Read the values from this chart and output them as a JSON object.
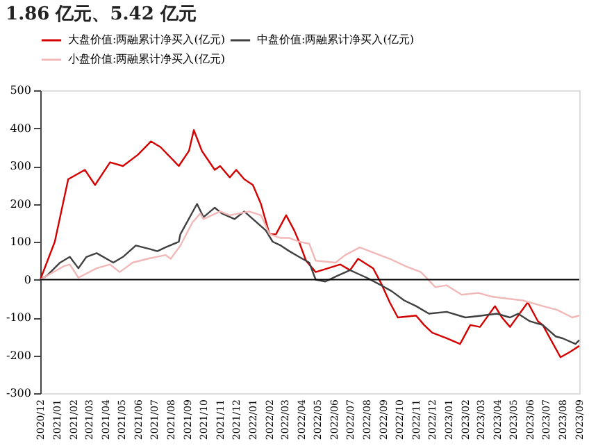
{
  "chart_data": {
    "type": "line",
    "title": "1.86 亿元、5.42 亿元",
    "xlim": [
      "2020-12",
      "2023-09"
    ],
    "xticks": [
      {
        "value": "2020-12",
        "label": "2020/12"
      },
      {
        "value": "2021-01",
        "label": "2021/01"
      },
      {
        "value": "2021-02",
        "label": "2021/02"
      },
      {
        "value": "2021-03",
        "label": "2021/03"
      },
      {
        "value": "2021-04",
        "label": "2021/04"
      },
      {
        "value": "2021-05",
        "label": "2021/05"
      },
      {
        "value": "2021-06",
        "label": "2021/06"
      },
      {
        "value": "2021-07",
        "label": "2021/07"
      },
      {
        "value": "2021-08",
        "label": "2021/08"
      },
      {
        "value": "2021-09",
        "label": "2021/09"
      },
      {
        "value": "2021-10",
        "label": "2021/10"
      },
      {
        "value": "2021-11",
        "label": "2021/11"
      },
      {
        "value": "2021-12",
        "label": "2021/12"
      },
      {
        "value": "2022-01",
        "label": "2022/01"
      },
      {
        "value": "2022-02",
        "label": "2022/02"
      },
      {
        "value": "2022-03",
        "label": "2022/03"
      },
      {
        "value": "2022-04",
        "label": "2022/04"
      },
      {
        "value": "2022-05",
        "label": "2022/05"
      },
      {
        "value": "2022-06",
        "label": "2022/06"
      },
      {
        "value": "2022-07",
        "label": "2022/07"
      },
      {
        "value": "2022-08",
        "label": "2022/08"
      },
      {
        "value": "2022-09",
        "label": "2022/09"
      },
      {
        "value": "2022-10",
        "label": "2022/10"
      },
      {
        "value": "2022-11",
        "label": "2022/11"
      },
      {
        "value": "2022-12",
        "label": "2022/12"
      },
      {
        "value": "2023-01",
        "label": "2023/01"
      },
      {
        "value": "2023-02",
        "label": "2023/02"
      },
      {
        "value": "2023-03",
        "label": "2023/03"
      },
      {
        "value": "2023-04",
        "label": "2023/04"
      },
      {
        "value": "2023-05",
        "label": "2023/05"
      },
      {
        "value": "2023-06",
        "label": "2023/06"
      },
      {
        "value": "2023-07",
        "label": "2023/07"
      },
      {
        "value": "2023-08",
        "label": "2023/08"
      },
      {
        "value": "2023-09",
        "label": "2023/09"
      }
    ],
    "ylim": [
      -300,
      500
    ],
    "yticks": [
      -300,
      -200,
      -100,
      0,
      100,
      200,
      300,
      400,
      500
    ],
    "grid": false,
    "legend": "top",
    "marker": "none",
    "line_style": "solid",
    "ref_lines": [
      {
        "axis": "y",
        "value": 0,
        "color": "#000000"
      }
    ],
    "series": [
      {
        "name": "大盘价值:两融累计净买入(亿元)",
        "color": "#d40000",
        "x": [
          "2020-12-01",
          "2020-12-28",
          "2021-01-22",
          "2021-02-22",
          "2021-03-13",
          "2021-04-10",
          "2021-05-04",
          "2021-06-01",
          "2021-06-25",
          "2021-07-13",
          "2021-08-16",
          "2021-09-04",
          "2021-09-13",
          "2021-09-28",
          "2021-10-22",
          "2021-11-01",
          "2021-11-19",
          "2021-12-01",
          "2021-12-16",
          "2022-01-01",
          "2022-01-16",
          "2022-02-01",
          "2022-02-13",
          "2022-03-04",
          "2022-03-19",
          "2022-03-28",
          "2022-04-10",
          "2022-04-28",
          "2022-06-13",
          "2022-07-01",
          "2022-07-16",
          "2022-08-13",
          "2022-08-28",
          "2022-09-13",
          "2022-09-28",
          "2022-11-01",
          "2022-11-16",
          "2022-12-01",
          "2022-12-28",
          "2023-01-22",
          "2023-02-10",
          "2023-02-28",
          "2023-03-28",
          "2023-04-10",
          "2023-04-25",
          "2023-05-28",
          "2023-06-16",
          "2023-06-25",
          "2023-07-28",
          "2023-08-16",
          "2023-09-01"
        ],
        "values": [
          0,
          100,
          265,
          290,
          250,
          310,
          300,
          330,
          365,
          350,
          300,
          340,
          395,
          340,
          290,
          300,
          270,
          290,
          265,
          250,
          200,
          120,
          120,
          170,
          130,
          100,
          50,
          20,
          40,
          25,
          55,
          30,
          -10,
          -60,
          -100,
          -95,
          -120,
          -140,
          -155,
          -170,
          -120,
          -125,
          -70,
          -100,
          -125,
          -60,
          -110,
          -120,
          -205,
          -190,
          -175
        ]
      },
      {
        "name": "中盘价值:两融累计净买入(亿元)",
        "color": "#404040",
        "x": [
          "2020-12-01",
          "2020-12-13",
          "2021-01-07",
          "2021-01-25",
          "2021-02-10",
          "2021-02-25",
          "2021-03-16",
          "2021-04-16",
          "2021-05-04",
          "2021-05-28",
          "2021-06-25",
          "2021-07-07",
          "2021-07-22",
          "2021-08-16",
          "2021-08-19",
          "2021-09-19",
          "2021-10-01",
          "2021-10-22",
          "2021-11-04",
          "2021-11-28",
          "2021-12-16",
          "2022-01-25",
          "2022-02-07",
          "2022-02-22",
          "2022-03-10",
          "2022-03-28",
          "2022-04-16",
          "2022-04-28",
          "2022-05-16",
          "2022-06-07",
          "2022-07-01",
          "2022-08-01",
          "2022-08-28",
          "2022-09-16",
          "2022-10-10",
          "2022-11-01",
          "2022-11-25",
          "2022-12-28",
          "2023-02-01",
          "2023-03-04",
          "2023-04-01",
          "2023-04-25",
          "2023-05-10",
          "2023-06-01",
          "2023-06-25",
          "2023-07-19",
          "2023-08-01",
          "2023-08-25",
          "2023-09-01"
        ],
        "values": [
          0,
          10,
          45,
          60,
          30,
          60,
          70,
          45,
          60,
          90,
          80,
          75,
          85,
          100,
          120,
          200,
          165,
          190,
          175,
          160,
          180,
          130,
          100,
          90,
          75,
          60,
          45,
          0,
          -5,
          10,
          25,
          5,
          -15,
          -30,
          -55,
          -70,
          -90,
          -85,
          -100,
          -95,
          -90,
          -100,
          -90,
          -110,
          -120,
          -150,
          -155,
          -170,
          -160
        ]
      },
      {
        "name": "小盘价值:两融累计净买入(亿元)",
        "color": "#f2b8b8",
        "x": [
          "2020-12-01",
          "2021-01-13",
          "2021-01-25",
          "2021-02-10",
          "2021-03-16",
          "2021-04-10",
          "2021-04-28",
          "2021-05-22",
          "2021-06-19",
          "2021-07-22",
          "2021-08-01",
          "2021-08-19",
          "2021-09-10",
          "2021-09-25",
          "2021-10-01",
          "2021-11-01",
          "2021-11-19",
          "2021-12-25",
          "2022-01-16",
          "2022-02-01",
          "2022-02-22",
          "2022-03-10",
          "2022-03-28",
          "2022-04-16",
          "2022-04-28",
          "2022-06-04",
          "2022-06-22",
          "2022-07-19",
          "2022-08-16",
          "2022-09-13",
          "2022-10-13",
          "2022-11-10",
          "2022-12-07",
          "2022-12-28",
          "2023-01-25",
          "2023-02-25",
          "2023-03-22",
          "2023-04-19",
          "2023-05-19",
          "2023-06-25",
          "2023-07-22",
          "2023-08-19",
          "2023-09-01"
        ],
        "values": [
          0,
          35,
          40,
          5,
          30,
          40,
          20,
          45,
          55,
          65,
          55,
          90,
          150,
          175,
          160,
          180,
          170,
          180,
          170,
          120,
          110,
          110,
          100,
          95,
          50,
          45,
          65,
          85,
          70,
          55,
          35,
          20,
          -20,
          -15,
          -40,
          -35,
          -45,
          -50,
          -55,
          -70,
          -80,
          -100,
          -95
        ]
      }
    ]
  }
}
